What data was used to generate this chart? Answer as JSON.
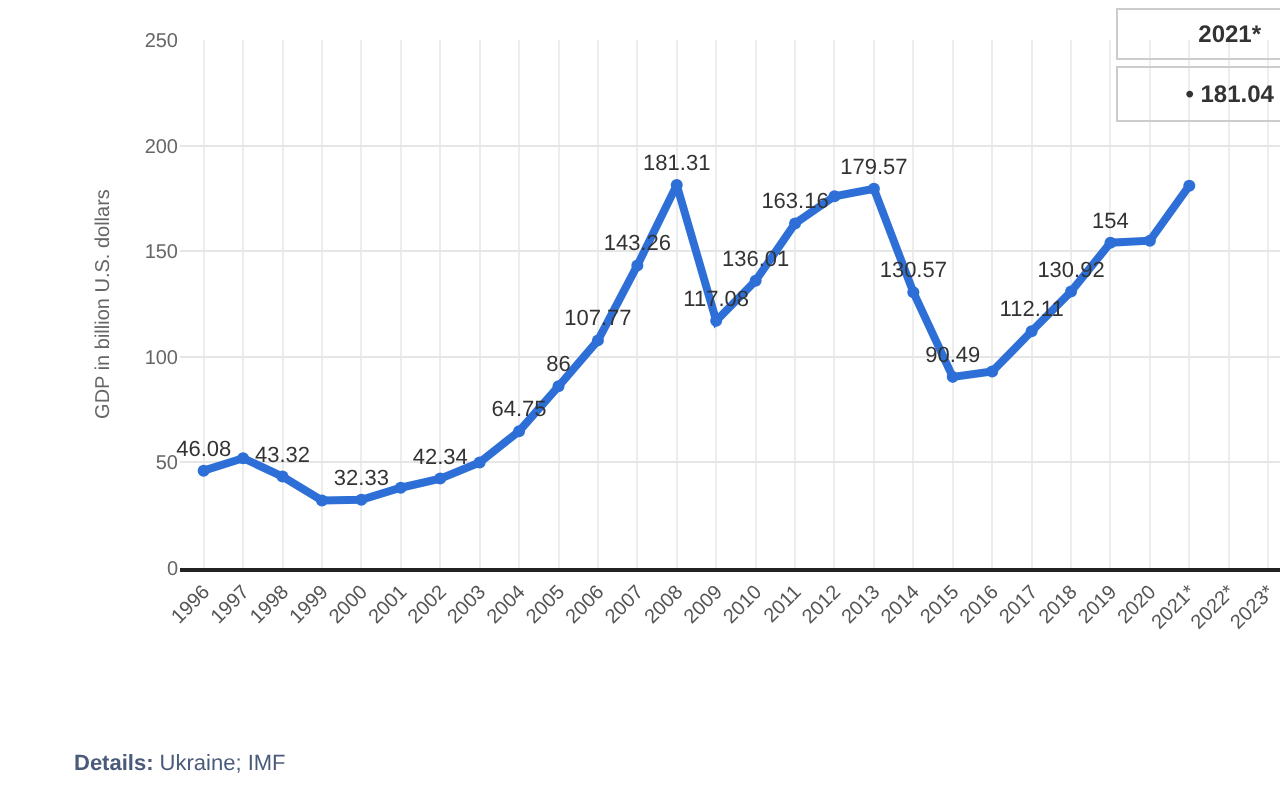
{
  "chart_data": {
    "type": "line",
    "ylabel": "GDP in billion U.S. dollars",
    "categories": [
      "1996",
      "1997",
      "1998",
      "1999",
      "2000",
      "2001",
      "2002",
      "2003",
      "2004",
      "2005",
      "2006",
      "2007",
      "2008",
      "2009",
      "2010",
      "2011",
      "2012",
      "2013",
      "2014",
      "2015",
      "2016",
      "2017",
      "2018",
      "2019",
      "2020",
      "2021*",
      "2022*",
      "2023*"
    ],
    "series": [
      {
        "color": "#2d6fd6",
        "values": [
          46.08,
          52,
          43.32,
          32,
          32.33,
          38,
          42.34,
          50,
          64.75,
          86,
          107.77,
          143.26,
          181.31,
          117.08,
          136.01,
          163.16,
          176,
          179.57,
          130.57,
          90.49,
          93,
          112.11,
          130.92,
          154,
          155,
          181.04,
          null,
          null
        ],
        "value_labels": [
          "46.08",
          null,
          "43.32",
          null,
          "32.33",
          null,
          "42.34",
          null,
          "64.75",
          "86",
          "107.77",
          "143.26",
          "181.31",
          "117.08",
          "136.01",
          "163.16",
          null,
          "179.57",
          "130.57",
          "90.49",
          null,
          "112.11",
          "130.92",
          "154",
          null,
          null,
          null,
          null
        ]
      }
    ],
    "ylim": [
      0,
      250
    ],
    "yticks": [
      0,
      50,
      100,
      150,
      200,
      250
    ],
    "grid": true,
    "marker": "circle",
    "line_style": "solid",
    "annotations": [
      "2021*",
      "• 181.04",
      {
        "text": "Details: Ukraine; IMF"
      }
    ]
  }
}
